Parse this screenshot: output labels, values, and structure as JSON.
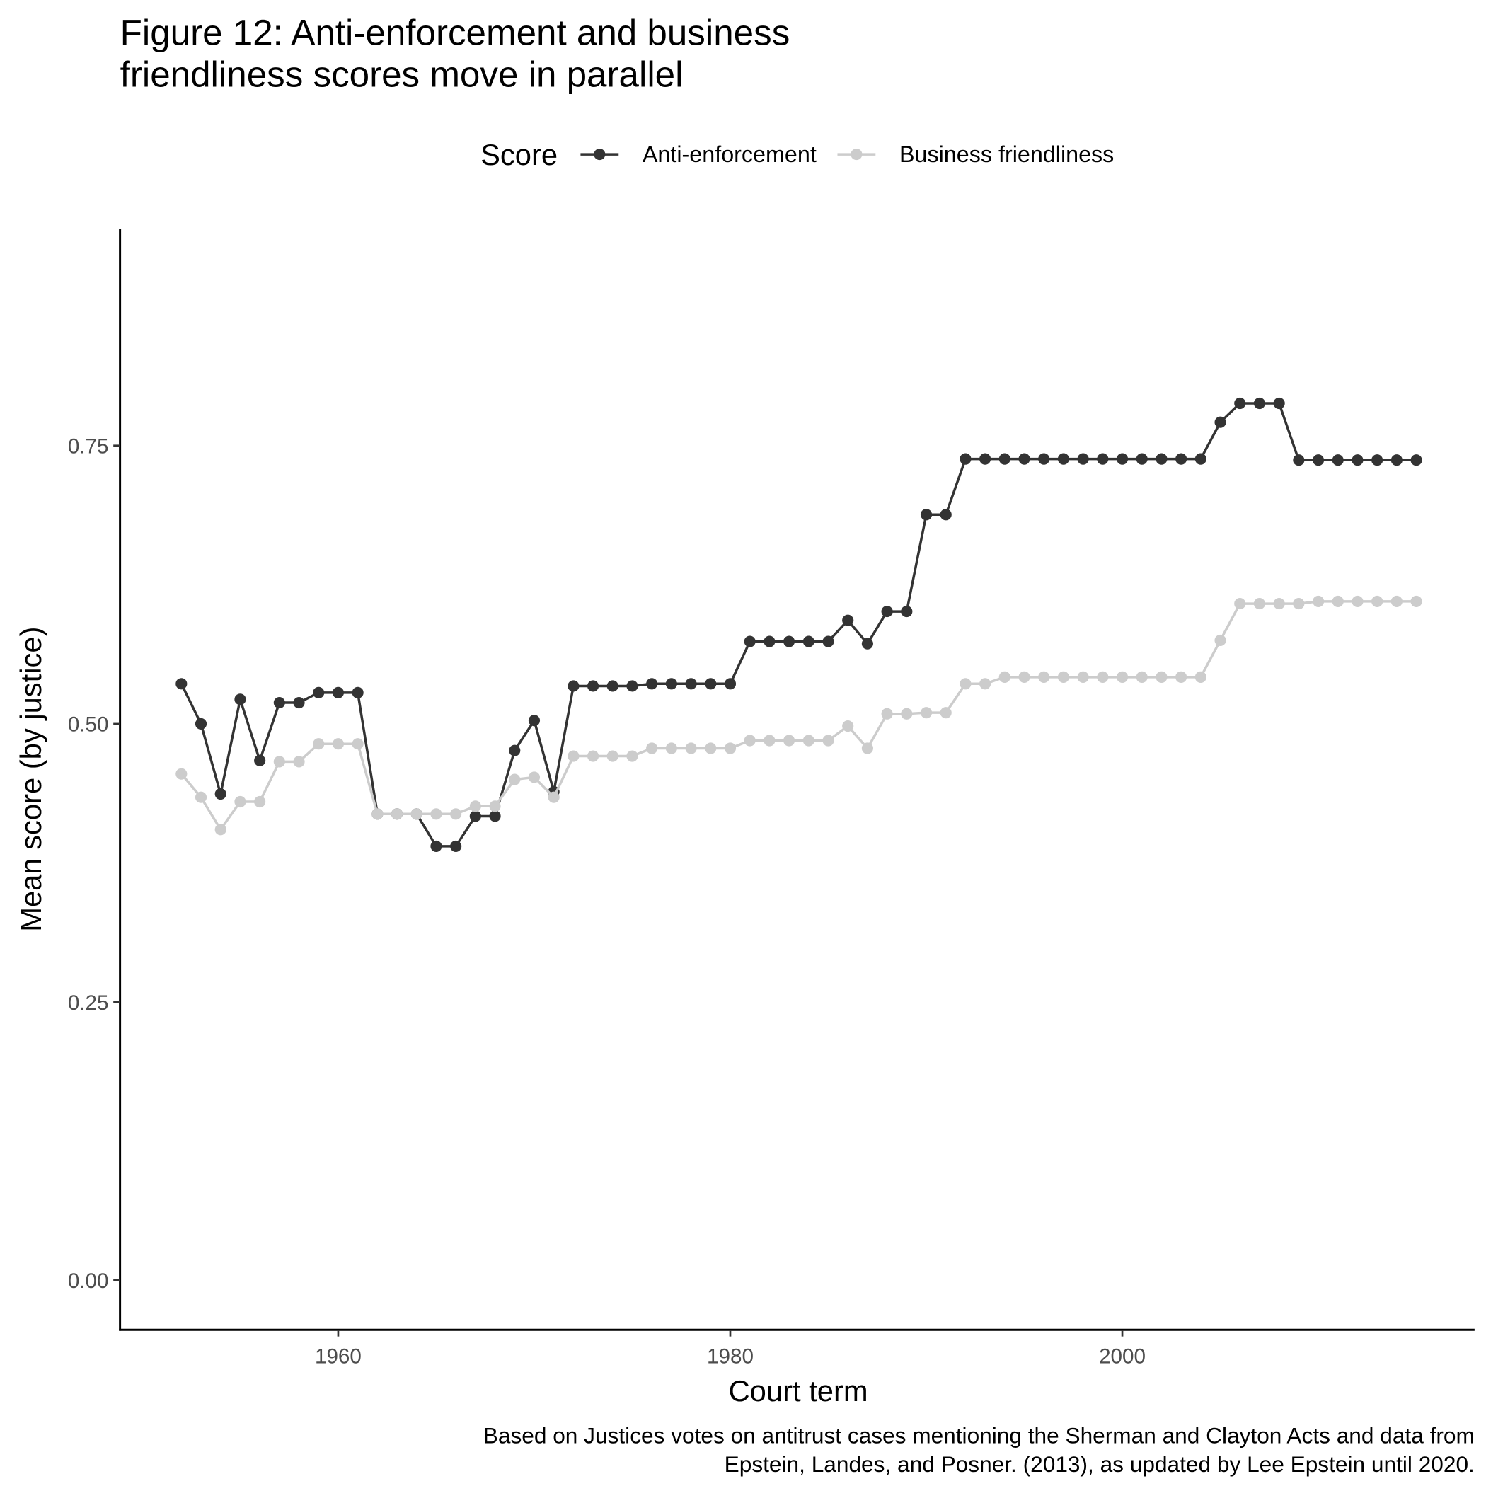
{
  "chart_data": {
    "type": "line",
    "title": [
      "Figure 12: Anti-enforcement and business",
      "friendliness scores move in parallel"
    ],
    "caption": [
      "Based on Justices votes on antitrust cases mentioning the Sherman and Clayton Acts and data from",
      "Epstein, Landes, and Posner. (2013), as updated by Lee Epstein until 2020."
    ],
    "x_label": "Court term",
    "y_label": "Mean score (by justice)",
    "legend_title": "Score",
    "legend_position": "top",
    "x": [
      1952,
      1953,
      1954,
      1955,
      1956,
      1957,
      1958,
      1959,
      1960,
      1961,
      1962,
      1963,
      1964,
      1965,
      1966,
      1967,
      1968,
      1969,
      1970,
      1971,
      1972,
      1973,
      1974,
      1975,
      1976,
      1977,
      1978,
      1979,
      1980,
      1981,
      1982,
      1983,
      1984,
      1985,
      1986,
      1987,
      1988,
      1989,
      1990,
      1991,
      1992,
      1993,
      1994,
      1995,
      1996,
      1997,
      1998,
      1999,
      2000,
      2001,
      2002,
      2003,
      2004,
      2005,
      2006,
      2007,
      2008,
      2009,
      2010,
      2011,
      2012,
      2013,
      2014,
      2015
    ],
    "series": [
      {
        "name": "Anti-enforcement",
        "color": "#333333",
        "values": [
          0.536,
          0.5,
          0.437,
          0.522,
          0.467,
          0.519,
          0.519,
          0.528,
          0.528,
          0.528,
          0.419,
          0.419,
          0.419,
          0.39,
          0.39,
          0.417,
          0.417,
          0.476,
          0.503,
          0.439,
          0.534,
          0.534,
          0.534,
          0.534,
          0.536,
          0.536,
          0.536,
          0.536,
          0.536,
          0.574,
          0.574,
          0.574,
          0.574,
          0.574,
          0.593,
          0.572,
          0.601,
          0.601,
          0.688,
          0.688,
          0.738,
          0.738,
          0.738,
          0.738,
          0.738,
          0.738,
          0.738,
          0.738,
          0.738,
          0.738,
          0.738,
          0.738,
          0.738,
          0.771,
          0.788,
          0.788,
          0.788,
          0.737,
          0.737,
          0.737,
          0.737,
          0.737,
          0.737,
          0.737
        ]
      },
      {
        "name": "Business friendliness",
        "color": "#cccccc",
        "values": [
          0.455,
          0.434,
          0.405,
          0.43,
          0.43,
          0.466,
          0.466,
          0.482,
          0.482,
          0.482,
          0.419,
          0.419,
          0.419,
          0.419,
          0.419,
          0.426,
          0.426,
          0.45,
          0.452,
          0.434,
          0.471,
          0.471,
          0.471,
          0.471,
          0.478,
          0.478,
          0.478,
          0.478,
          0.478,
          0.485,
          0.485,
          0.485,
          0.485,
          0.485,
          0.498,
          0.478,
          0.509,
          0.509,
          0.51,
          0.51,
          0.536,
          0.536,
          0.542,
          0.542,
          0.542,
          0.542,
          0.542,
          0.542,
          0.542,
          0.542,
          0.542,
          0.542,
          0.542,
          0.575,
          0.608,
          0.608,
          0.608,
          0.608,
          0.61,
          0.61,
          0.61,
          0.61,
          0.61,
          0.61
        ]
      }
    ],
    "xlim": [
      1948.87,
      2017.97
    ],
    "ylim": [
      -0.0445,
      0.945
    ],
    "xticks": [
      1960,
      1980,
      2000
    ],
    "yticks": [
      {
        "value": 0,
        "label": "0.00"
      },
      {
        "value": 0.25,
        "label": "0.25"
      },
      {
        "value": 0.5,
        "label": "0.50"
      },
      {
        "value": 0.75,
        "label": "0.75"
      }
    ]
  }
}
